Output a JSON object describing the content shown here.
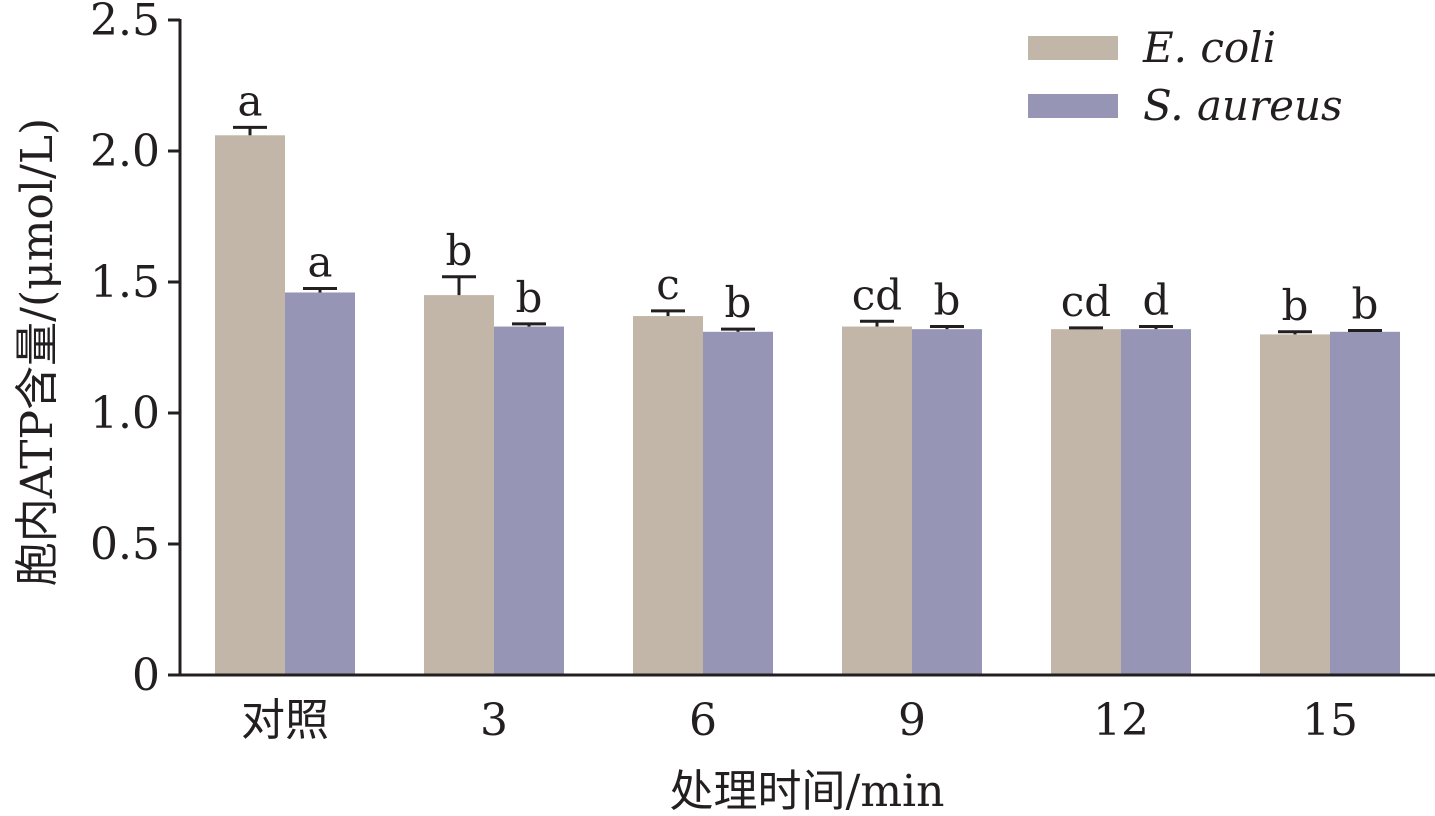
{
  "chart_data": {
    "type": "bar",
    "title": "",
    "xlabel": "处理时间/min",
    "ylabel": "胞内ATP含量/(μmol/L)",
    "categories": [
      "对照",
      "3",
      "6",
      "9",
      "12",
      "15"
    ],
    "ylim": [
      0,
      2.5
    ],
    "yticks": [
      0,
      0.5,
      1.0,
      1.5,
      2.0,
      2.5
    ],
    "ytick_labels": [
      "0",
      "0.5",
      "1.0",
      "1.5",
      "2.0",
      "2.5"
    ],
    "grid": false,
    "legend_position": "top-right",
    "series": [
      {
        "name": "E. coli",
        "color": "#c2b6a8",
        "values": [
          2.06,
          1.45,
          1.37,
          1.33,
          1.32,
          1.3
        ],
        "errors": [
          0.03,
          0.07,
          0.02,
          0.02,
          0.005,
          0.01
        ],
        "labels": [
          "a",
          "b",
          "c",
          "cd",
          "cd",
          "b"
        ]
      },
      {
        "name": "S. aureus",
        "color": "#9795b5",
        "values": [
          1.46,
          1.33,
          1.31,
          1.32,
          1.32,
          1.31
        ],
        "errors": [
          0.015,
          0.01,
          0.01,
          0.01,
          0.01,
          0.005
        ],
        "labels": [
          "a",
          "b",
          "b",
          "b",
          "d",
          "b"
        ]
      }
    ]
  }
}
